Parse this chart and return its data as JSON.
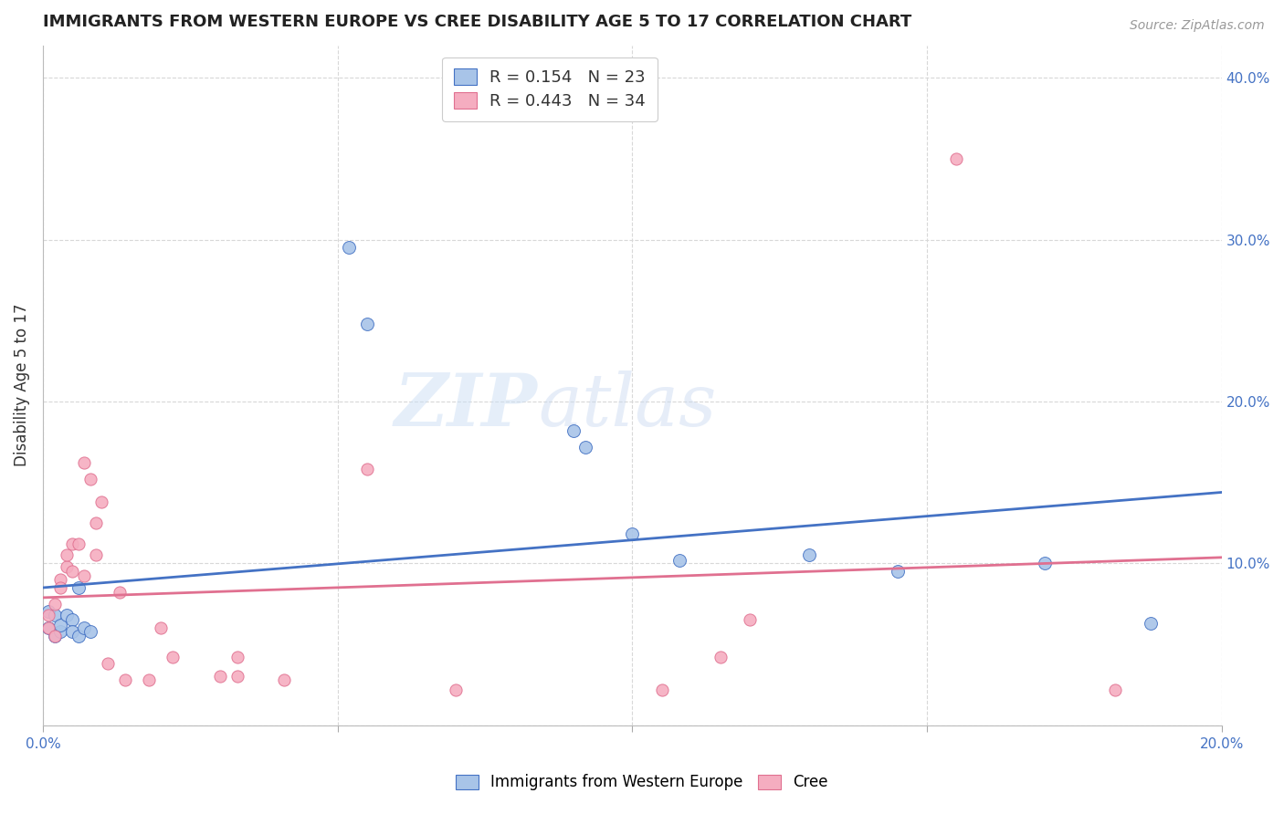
{
  "title": "IMMIGRANTS FROM WESTERN EUROPE VS CREE DISABILITY AGE 5 TO 17 CORRELATION CHART",
  "source": "Source: ZipAtlas.com",
  "ylabel": "Disability Age 5 to 17",
  "blue_label": "Immigrants from Western Europe",
  "pink_label": "Cree",
  "blue_R": 0.154,
  "blue_N": 23,
  "pink_R": 0.443,
  "pink_N": 34,
  "blue_color": "#a8c4e8",
  "pink_color": "#f5adc0",
  "blue_line_color": "#4472c4",
  "pink_line_color": "#e07090",
  "axis_label_color": "#4472c4",
  "xlim": [
    0,
    0.2
  ],
  "ylim": [
    0,
    0.42
  ],
  "xticks": [
    0.0,
    0.05,
    0.1,
    0.15,
    0.2
  ],
  "xtick_labels": [
    "0.0%",
    "",
    "",
    "",
    "20.0%"
  ],
  "ytick_right": [
    0.0,
    0.1,
    0.2,
    0.3,
    0.4
  ],
  "ytick_right_labels": [
    "",
    "10.0%",
    "20.0%",
    "30.0%",
    "40.0%"
  ],
  "blue_x": [
    0.001,
    0.001,
    0.002,
    0.002,
    0.003,
    0.003,
    0.004,
    0.005,
    0.005,
    0.006,
    0.006,
    0.007,
    0.008,
    0.052,
    0.055,
    0.09,
    0.092,
    0.1,
    0.108,
    0.13,
    0.145,
    0.17,
    0.188
  ],
  "blue_y": [
    0.07,
    0.06,
    0.068,
    0.055,
    0.058,
    0.062,
    0.068,
    0.065,
    0.058,
    0.055,
    0.085,
    0.06,
    0.058,
    0.295,
    0.248,
    0.182,
    0.172,
    0.118,
    0.102,
    0.105,
    0.095,
    0.1,
    0.063
  ],
  "pink_x": [
    0.001,
    0.001,
    0.002,
    0.002,
    0.003,
    0.003,
    0.004,
    0.004,
    0.005,
    0.005,
    0.006,
    0.007,
    0.007,
    0.008,
    0.009,
    0.009,
    0.01,
    0.011,
    0.013,
    0.014,
    0.018,
    0.02,
    0.022,
    0.03,
    0.033,
    0.033,
    0.041,
    0.055,
    0.07,
    0.105,
    0.115,
    0.12,
    0.155,
    0.182
  ],
  "pink_y": [
    0.068,
    0.06,
    0.075,
    0.055,
    0.09,
    0.085,
    0.098,
    0.105,
    0.095,
    0.112,
    0.112,
    0.092,
    0.162,
    0.152,
    0.105,
    0.125,
    0.138,
    0.038,
    0.082,
    0.028,
    0.028,
    0.06,
    0.042,
    0.03,
    0.03,
    0.042,
    0.028,
    0.158,
    0.022,
    0.022,
    0.042,
    0.065,
    0.35,
    0.022
  ],
  "blue_scatter_size": 100,
  "pink_scatter_size": 90,
  "watermark_zip": "ZIP",
  "watermark_atlas": "atlas",
  "background_color": "#ffffff",
  "grid_color": "#d8d8d8"
}
